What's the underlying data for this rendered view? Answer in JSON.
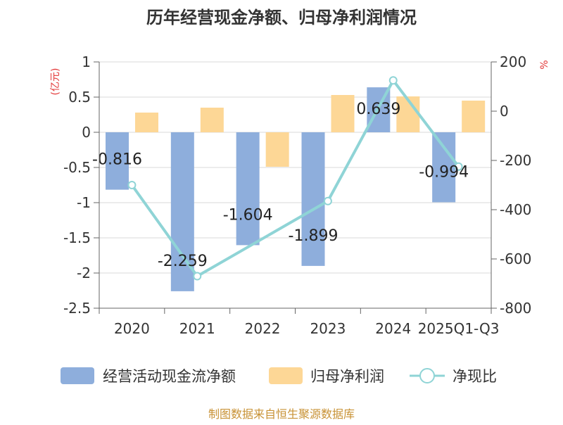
{
  "chart_data": {
    "type": "bar",
    "title": "历年经营现金净额、归母净利润情况",
    "categories": [
      "2020",
      "2021",
      "2022",
      "2023",
      "2024",
      "2025Q1-Q3"
    ],
    "series": [
      {
        "name": "经营活动现金流净额",
        "axis": "left",
        "color": "#8eaedc",
        "values": [
          -0.816,
          -2.259,
          -1.604,
          -1.899,
          0.639,
          -0.994
        ],
        "labels": [
          "-0.816",
          "-2.259",
          "-1.604",
          "-1.899",
          "0.639",
          "-0.994"
        ]
      },
      {
        "name": "归母净利润",
        "axis": "left",
        "color": "#fdd796",
        "values": [
          0.28,
          0.35,
          -0.49,
          0.53,
          0.51,
          0.45
        ]
      },
      {
        "name": "净现比",
        "type": "line",
        "axis": "right",
        "color": "#8fd4d6",
        "values": [
          -300,
          -670,
          null,
          -365,
          125,
          -225
        ]
      }
    ],
    "left_axis": {
      "label": "(亿元)",
      "ylim": [
        -2.5,
        1
      ],
      "ticks": [
        1,
        0.5,
        0,
        -0.5,
        -1,
        -1.5,
        -2,
        -2.5
      ],
      "tick_labels": [
        "1",
        "0.5",
        "0",
        "-0.5",
        "-1",
        "-1.5",
        "-2",
        "-2.5"
      ]
    },
    "right_axis": {
      "label": "%",
      "ylim": [
        -800,
        200
      ],
      "ticks": [
        200,
        0,
        -200,
        -400,
        -600,
        -800
      ],
      "tick_labels": [
        "200",
        "0",
        "-200",
        "-400",
        "-600",
        "-800"
      ]
    },
    "grid": true,
    "legend_position": "bottom"
  },
  "footer": {
    "source": "制图数据来自恒生聚源数据库"
  }
}
